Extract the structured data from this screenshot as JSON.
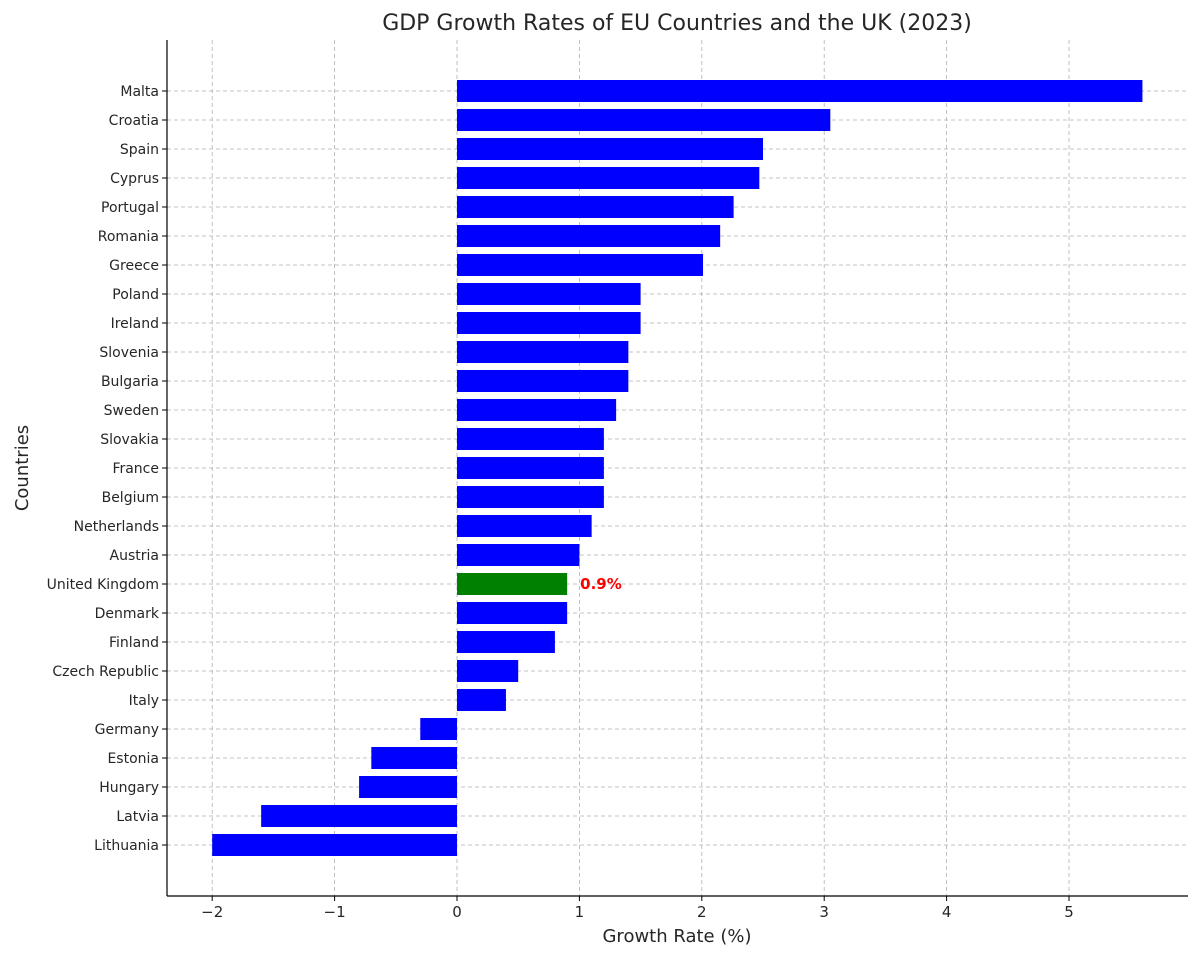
{
  "chart_data": {
    "type": "bar",
    "orientation": "horizontal",
    "title": "GDP Growth Rates of EU Countries and the UK (2023)",
    "xlabel": "Growth Rate (%)",
    "ylabel": "Countries",
    "xlim": [
      -2.4,
      5.95
    ],
    "xticks": [
      -2,
      -1,
      0,
      1,
      2,
      3,
      4,
      5
    ],
    "xtick_labels": [
      "−2",
      "−1",
      "0",
      "1",
      "2",
      "3",
      "4",
      "5"
    ],
    "grid": true,
    "categories": [
      "Malta",
      "Croatia",
      "Spain",
      "Cyprus",
      "Portugal",
      "Romania",
      "Greece",
      "Poland",
      "Ireland",
      "Slovenia",
      "Bulgaria",
      "Sweden",
      "Slovakia",
      "France",
      "Belgium",
      "Netherlands",
      "Austria",
      "United Kingdom",
      "Denmark",
      "Finland",
      "Czech Republic",
      "Italy",
      "Germany",
      "Estonia",
      "Hungary",
      "Latvia",
      "Lithuania"
    ],
    "values": [
      5.6,
      3.05,
      2.5,
      2.47,
      2.26,
      2.15,
      2.01,
      1.5,
      1.5,
      1.4,
      1.4,
      1.3,
      1.2,
      1.2,
      1.2,
      1.1,
      1.0,
      0.9,
      0.9,
      0.8,
      0.5,
      0.4,
      -0.3,
      -0.7,
      -0.8,
      -1.6,
      -2.0
    ],
    "bar_color": "#0000ff",
    "highlight": {
      "category": "United Kingdom",
      "color": "#008000"
    },
    "annotation": {
      "text": "0.9%",
      "category": "United Kingdom",
      "color": "#ff0000"
    }
  }
}
